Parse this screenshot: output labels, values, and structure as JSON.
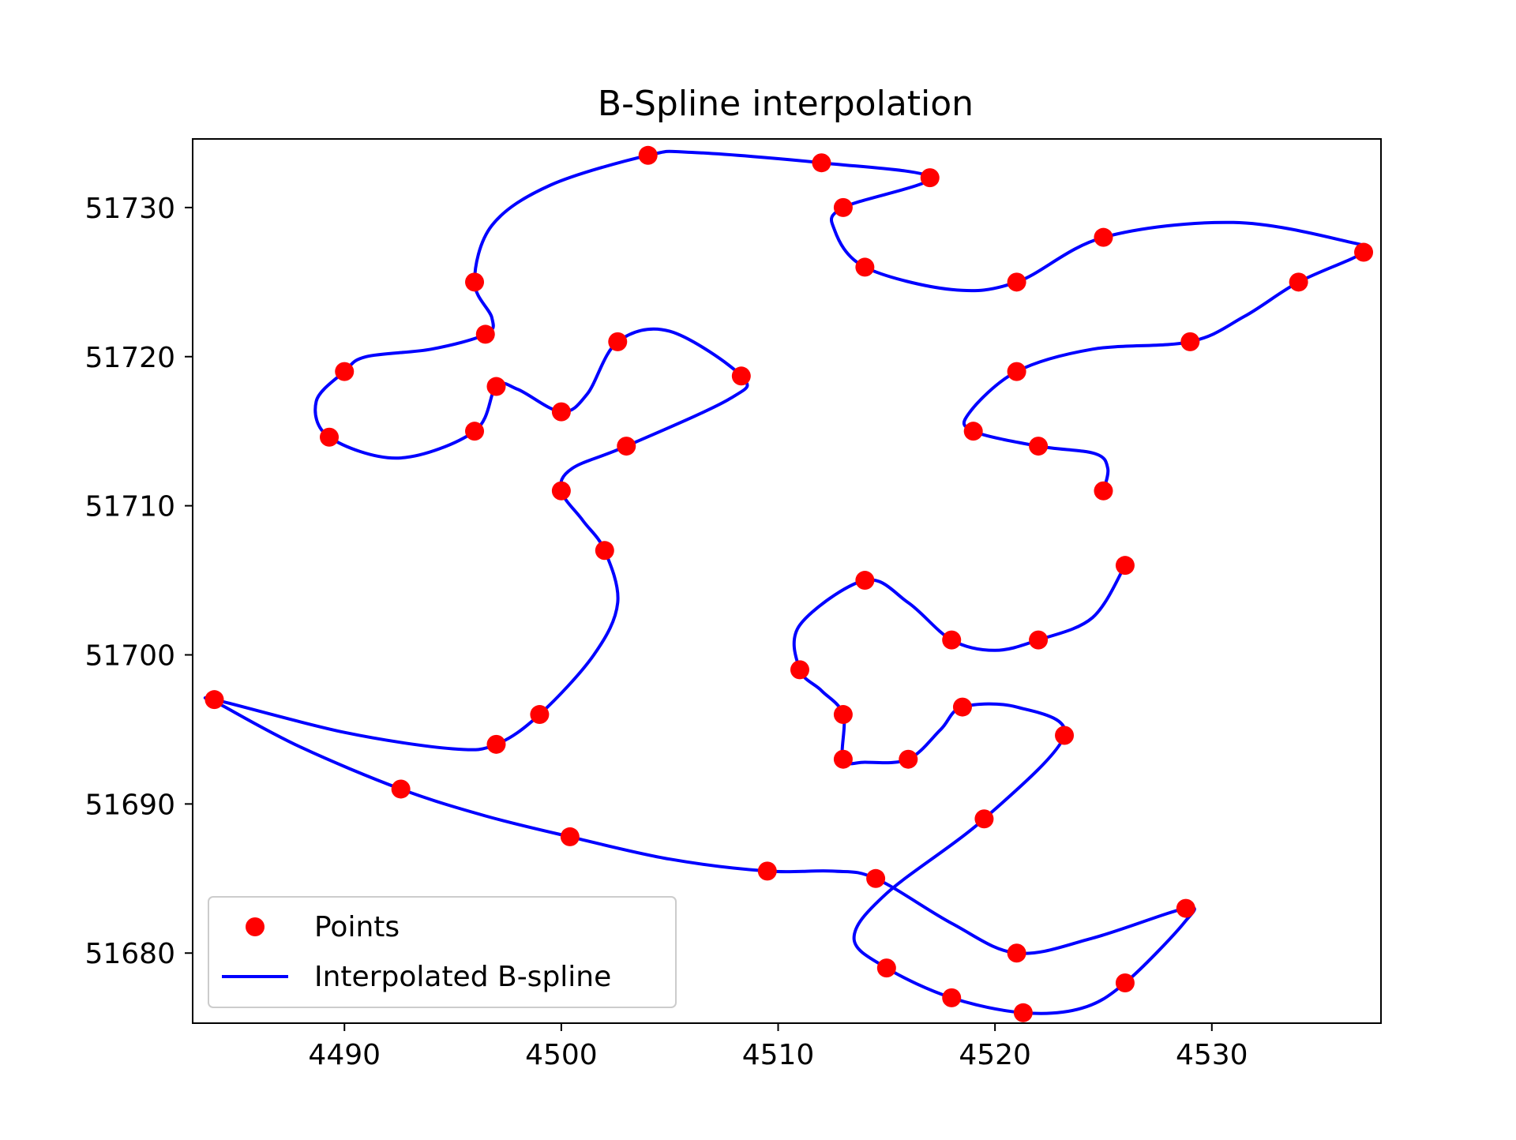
{
  "chart_data": {
    "type": "scatter",
    "title": "B-Spline interpolation",
    "xlabel": "",
    "ylabel": "",
    "xlim": [
      4483,
      4537.8
    ],
    "ylim": [
      51675.3,
      51734.6
    ],
    "xticks": [
      4490,
      4500,
      4510,
      4520,
      4530
    ],
    "yticks": [
      51680,
      51690,
      51700,
      51710,
      51720,
      51730
    ],
    "xtick_labels": [
      "4490",
      "4500",
      "4510",
      "4520",
      "4530"
    ],
    "ytick_labels": [
      "51680",
      "51690",
      "51700",
      "51710",
      "51720",
      "51730"
    ],
    "grid": false,
    "legend_position": "lower-left",
    "legend": {
      "points_label": "Points",
      "spline_label": "Interpolated B-spline"
    },
    "colors": {
      "points": "#ff0000",
      "spline": "#0000ff"
    },
    "series": [
      {
        "name": "Points",
        "kind": "scatter",
        "points": [
          [
            4525,
            51711
          ],
          [
            4522,
            51714
          ],
          [
            4519,
            51715
          ],
          [
            4521,
            51719
          ],
          [
            4529,
            51721
          ],
          [
            4534,
            51725
          ],
          [
            4537,
            51727
          ],
          [
            4525,
            51728
          ],
          [
            4521,
            51725
          ],
          [
            4514,
            51726
          ],
          [
            4513,
            51730
          ],
          [
            4517,
            51732
          ],
          [
            4512,
            51733
          ],
          [
            4504,
            51733.5
          ],
          [
            4496,
            51725
          ],
          [
            4496.5,
            51721.5
          ],
          [
            4490,
            51719
          ],
          [
            4489.3,
            51714.6
          ],
          [
            4496,
            51715
          ],
          [
            4497,
            51718
          ],
          [
            4500,
            51716.3
          ],
          [
            4502.6,
            51721
          ],
          [
            4508.3,
            51718.7
          ],
          [
            4503,
            51714
          ],
          [
            4500,
            51711
          ],
          [
            4502,
            51707
          ],
          [
            4499,
            51696
          ],
          [
            4497,
            51694
          ],
          [
            4484,
            51697
          ],
          [
            4492.6,
            51691
          ],
          [
            4500.4,
            51687.8
          ],
          [
            4509.5,
            51685.5
          ],
          [
            4514.5,
            51685
          ],
          [
            4521,
            51680
          ],
          [
            4528.8,
            51683
          ],
          [
            4526,
            51678
          ],
          [
            4521.3,
            51676
          ],
          [
            4518,
            51677
          ],
          [
            4515,
            51679
          ],
          [
            4519.5,
            51689
          ],
          [
            4523.2,
            51694.6
          ],
          [
            4518.5,
            51696.5
          ],
          [
            4516,
            51693
          ],
          [
            4513,
            51693
          ],
          [
            4513,
            51696
          ],
          [
            4511,
            51699
          ],
          [
            4514,
            51705
          ],
          [
            4518,
            51701
          ],
          [
            4522,
            51701
          ],
          [
            4526,
            51706
          ]
        ]
      },
      {
        "name": "Interpolated B-spline",
        "kind": "line",
        "points": [
          [
            4525,
            51711
          ],
          [
            4525.2,
            51712.5
          ],
          [
            4524.6,
            51713.5
          ],
          [
            4522,
            51714
          ],
          [
            4519,
            51715
          ],
          [
            4518.8,
            51716.2
          ],
          [
            4521,
            51719
          ],
          [
            4524.5,
            51720.5
          ],
          [
            4529,
            51721
          ],
          [
            4531.5,
            51722.7
          ],
          [
            4534,
            51725
          ],
          [
            4537,
            51727
          ],
          [
            4536.3,
            51727.7
          ],
          [
            4531,
            51729
          ],
          [
            4525,
            51728
          ],
          [
            4521,
            51725
          ],
          [
            4518,
            51724.5
          ],
          [
            4514,
            51726
          ],
          [
            4512.6,
            51728.5
          ],
          [
            4513,
            51730
          ],
          [
            4517,
            51732
          ],
          [
            4512,
            51733
          ],
          [
            4506,
            51733.7
          ],
          [
            4504,
            51733.5
          ],
          [
            4499.5,
            51731.5
          ],
          [
            4496.8,
            51728.8
          ],
          [
            4496,
            51725
          ],
          [
            4496.8,
            51722.6
          ],
          [
            4496.5,
            51721.5
          ],
          [
            4494,
            51720.5
          ],
          [
            4491,
            51720
          ],
          [
            4490,
            51719
          ],
          [
            4488.7,
            51717
          ],
          [
            4489.3,
            51714.6
          ],
          [
            4492.5,
            51713.2
          ],
          [
            4496,
            51715
          ],
          [
            4497,
            51718
          ],
          [
            4498,
            51717.8
          ],
          [
            4500,
            51716.3
          ],
          [
            4501.2,
            51717.5
          ],
          [
            4502.6,
            51721
          ],
          [
            4505,
            51721.7
          ],
          [
            4508.3,
            51718.7
          ],
          [
            4507.8,
            51717.2
          ],
          [
            4503,
            51714
          ],
          [
            4500.5,
            51712.5
          ],
          [
            4500,
            51711
          ],
          [
            4501,
            51709
          ],
          [
            4502,
            51707
          ],
          [
            4502.6,
            51703.5
          ],
          [
            4501.5,
            51700
          ],
          [
            4499,
            51696
          ],
          [
            4497,
            51694
          ],
          [
            4495,
            51693.7
          ],
          [
            4490,
            51694.8
          ],
          [
            4484,
            51697
          ],
          [
            4484.5,
            51696.5
          ],
          [
            4488,
            51693.8
          ],
          [
            4492.6,
            51691
          ],
          [
            4496.5,
            51689.2
          ],
          [
            4500.4,
            51687.8
          ],
          [
            4505,
            51686.3
          ],
          [
            4509.5,
            51685.5
          ],
          [
            4512.5,
            51685.5
          ],
          [
            4514.5,
            51685
          ],
          [
            4518,
            51682
          ],
          [
            4521,
            51680
          ],
          [
            4524.5,
            51681
          ],
          [
            4528.8,
            51683
          ],
          [
            4528.7,
            51682
          ],
          [
            4526,
            51678
          ],
          [
            4524,
            51676.3
          ],
          [
            4521.3,
            51676
          ],
          [
            4518,
            51677
          ],
          [
            4515,
            51679
          ],
          [
            4513.5,
            51681
          ],
          [
            4515,
            51684
          ],
          [
            4519.5,
            51689
          ],
          [
            4523.2,
            51694.6
          ],
          [
            4521,
            51696.5
          ],
          [
            4518.5,
            51696.5
          ],
          [
            4517.5,
            51695
          ],
          [
            4516,
            51693
          ],
          [
            4514,
            51692.8
          ],
          [
            4513,
            51693
          ],
          [
            4513,
            51696
          ],
          [
            4512,
            51697.6
          ],
          [
            4511,
            51699
          ],
          [
            4511,
            51702
          ],
          [
            4514,
            51705
          ],
          [
            4516,
            51703.5
          ],
          [
            4518,
            51701
          ],
          [
            4520,
            51700.3
          ],
          [
            4522,
            51701
          ],
          [
            4524.5,
            51702.5
          ],
          [
            4526,
            51706
          ]
        ]
      }
    ]
  }
}
